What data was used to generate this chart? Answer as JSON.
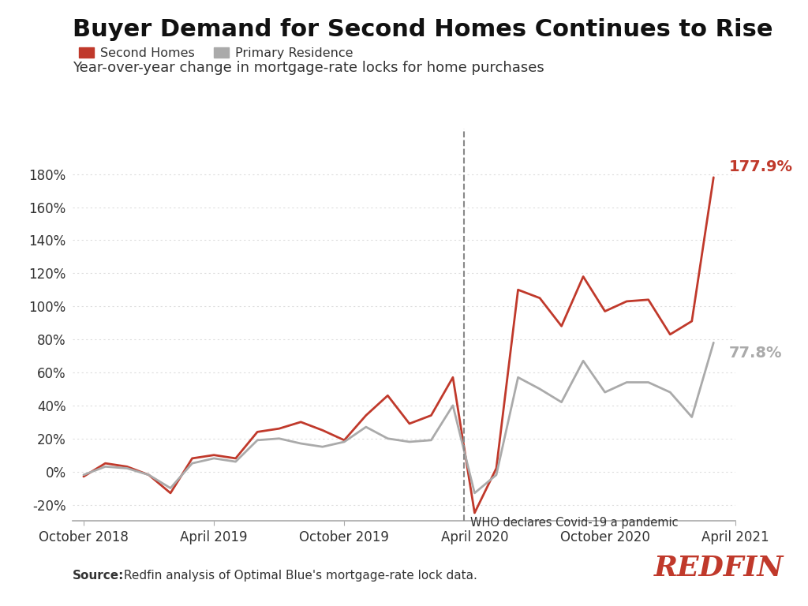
{
  "title": "Buyer Demand for Second Homes Continues to Rise",
  "subtitle": "Year-over-year change in mortgage-rate locks for home purchases",
  "source_bold": "Source:",
  "source_rest": " Redfin analysis of Optimal Blue's mortgage-rate lock data.",
  "second_homes_label": "Second Homes",
  "primary_label": "Primary Residence",
  "second_homes_color": "#C0392B",
  "primary_color": "#AAAAAA",
  "annotation_text": "WHO declares Covid-19 a pandemic",
  "end_label_second": "177.9%",
  "end_label_primary": "77.8%",
  "ylim": [
    -30,
    190
  ],
  "yticks": [
    -20,
    0,
    20,
    40,
    60,
    80,
    100,
    120,
    140,
    160,
    180
  ],
  "background_color": "#FFFFFF",
  "grid_color": "#DDDDDD",
  "x_labels": [
    "October 2018",
    "April 2019",
    "October 2019",
    "April 2020",
    "October 2020",
    "April 2021"
  ],
  "x_positions": [
    0,
    6,
    12,
    18,
    24,
    30
  ],
  "second_homes": [
    -3,
    5,
    3,
    -2,
    -13,
    8,
    10,
    8,
    24,
    26,
    30,
    25,
    19,
    34,
    46,
    29,
    34,
    57,
    -25,
    2,
    110,
    105,
    88,
    118,
    97,
    103,
    104,
    83,
    91,
    178
  ],
  "primary": [
    -2,
    3,
    2,
    -2,
    -10,
    5,
    8,
    6,
    19,
    20,
    17,
    15,
    18,
    27,
    20,
    18,
    19,
    40,
    -13,
    -2,
    57,
    50,
    42,
    67,
    48,
    54,
    54,
    48,
    33,
    78
  ],
  "dashed_line_x": 17.5,
  "redfin_color": "#C0392B",
  "title_fontsize": 22,
  "subtitle_fontsize": 13,
  "tick_fontsize": 12,
  "label_fontsize": 14,
  "source_fontsize": 11,
  "redfin_fontsize": 26
}
